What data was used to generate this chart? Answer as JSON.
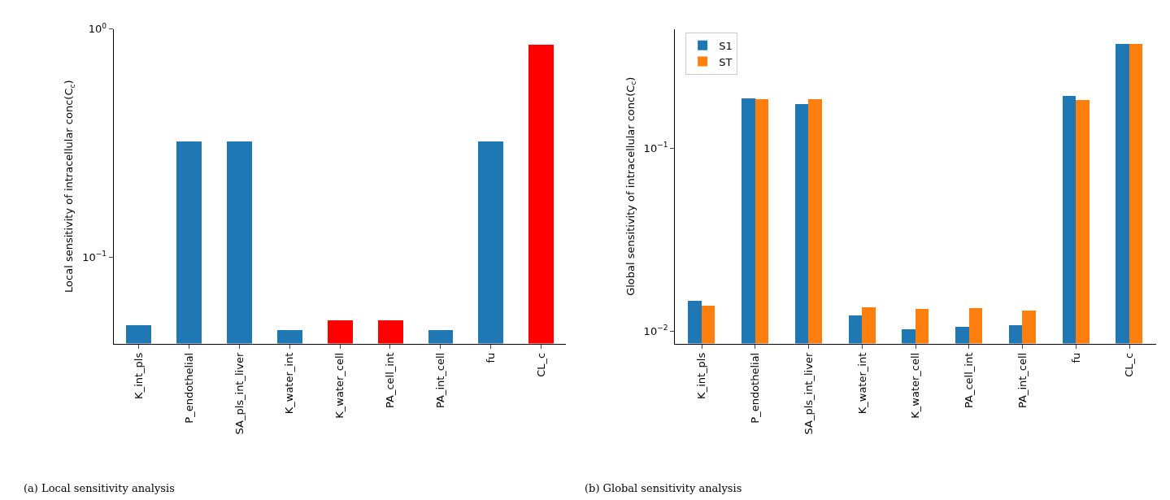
{
  "chart_data": [
    {
      "type": "bar",
      "ylabel": "Local sensitivity of intracellular conc(C$_{c}$)",
      "categories": [
        "K_int_pls",
        "P_endothelial",
        "SA_pls_int_liver",
        "K_water_int",
        "K_water_cell",
        "PA_cell_int",
        "PA_int_cell",
        "fu",
        "CL_c"
      ],
      "values": [
        0.0503,
        0.323,
        0.323,
        0.048,
        0.0528,
        0.0528,
        0.048,
        0.323,
        0.859
      ],
      "colors": [
        "#1f77b4",
        "#1f77b4",
        "#1f77b4",
        "#1f77b4",
        "#ff0000",
        "#ff0000",
        "#1f77b4",
        "#1f77b4",
        "#ff0000"
      ],
      "log": "y",
      "ylim": [
        0.0417,
        1
      ],
      "yticks": [
        {
          "value": 0.1,
          "label": "10$^{−1}$"
        },
        {
          "value": 1,
          "label": "10$^{0}$"
        }
      ],
      "legend": false,
      "annotations": [
        "(a) Local sensitivity analysis"
      ]
    },
    {
      "type": "bar",
      "ylabel": "Global sensitivity of intracellular conc(C$_{c}$)",
      "categories": [
        "K_int_pls",
        "P_endothelial",
        "SA_pls_int_liver",
        "K_water_int",
        "K_water_cell",
        "PA_cell_int",
        "PA_int_cell",
        "fu",
        "CL_c"
      ],
      "series": [
        {
          "name": "S1",
          "color": "#1f77b4",
          "values": [
            0.0147,
            0.187,
            0.174,
            0.0122,
            0.0102,
            0.0106,
            0.0108,
            0.194,
            0.371
          ]
        },
        {
          "name": "ST",
          "color": "#ff7f0e",
          "values": [
            0.0137,
            0.185,
            0.185,
            0.0135,
            0.0132,
            0.0133,
            0.0129,
            0.183,
            0.371
          ]
        }
      ],
      "log": "y",
      "ylim": [
        0.00853,
        0.448
      ],
      "yticks": [
        {
          "value": 0.01,
          "label": "10$^{−2}$"
        },
        {
          "value": 0.1,
          "label": "10$^{−1}$"
        }
      ],
      "legend": "top left",
      "annotations": [
        "(b) Global sensitivity analysis"
      ]
    }
  ]
}
